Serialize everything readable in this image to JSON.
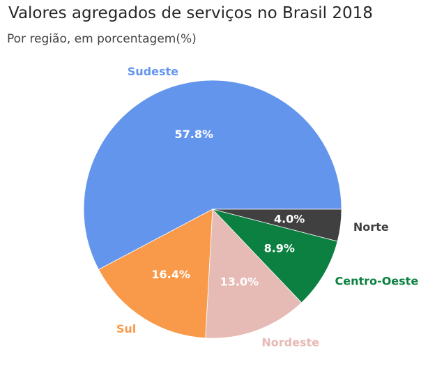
{
  "chart_data": {
    "type": "pie",
    "title": "Valores agregados de serviços no Brasil 2018",
    "subtitle": "Por região, em porcentagem(%)",
    "categories": [
      "Sudeste",
      "Sul",
      "Nordeste",
      "Centro-Oeste",
      "Norte"
    ],
    "values": [
      57.8,
      16.4,
      13.0,
      8.9,
      4.0
    ],
    "value_labels": [
      "57.8%",
      "16.4%",
      "13.0%",
      "8.9%",
      "4.0%"
    ],
    "colors": [
      "#6495ED",
      "#F99A4A",
      "#E6BAB5",
      "#0B8040",
      "#404040"
    ],
    "start_angle_deg": 0,
    "direction": "counterclockwise"
  }
}
